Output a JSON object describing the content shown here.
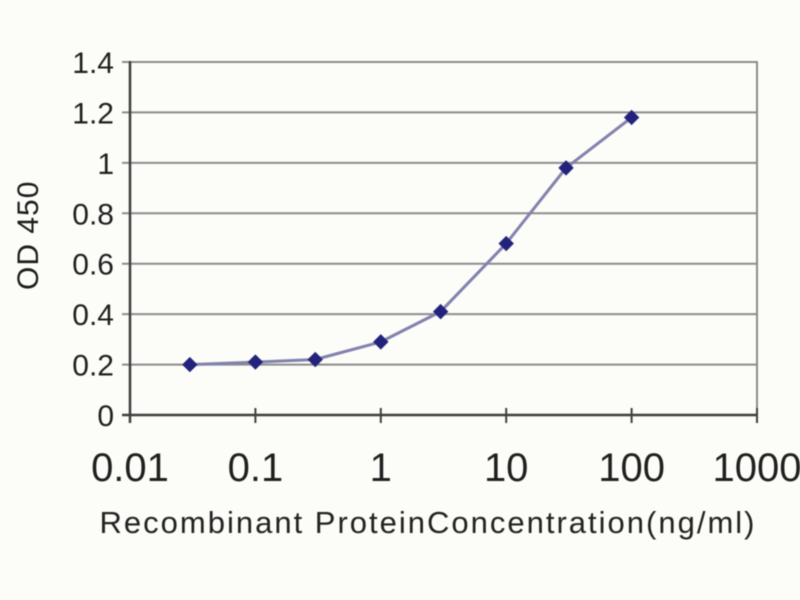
{
  "chart_data": {
    "type": "line",
    "title": "",
    "xlabel": "Recombinant ProteinConcentration(ng/ml)",
    "ylabel": "OD 450",
    "x_scale": "log",
    "xlim": [
      0.01,
      1000
    ],
    "ylim": [
      0,
      1.4
    ],
    "grid": "horizontal",
    "legend": "none",
    "x_ticks": {
      "values": [
        0.01,
        0.1,
        1,
        10,
        100,
        1000
      ],
      "labels": [
        "0.01",
        "0.1",
        "1",
        "10",
        "100",
        "1000"
      ]
    },
    "y_ticks": {
      "values": [
        0,
        0.2,
        0.4,
        0.6,
        0.8,
        1,
        1.2,
        1.4
      ],
      "labels": [
        "0",
        "0.2",
        "0.4",
        "0.6",
        "0.8",
        "1",
        "1.2",
        "1.4"
      ]
    },
    "series": [
      {
        "marker": "diamond",
        "x": [
          0.03,
          0.1,
          0.3,
          1,
          3,
          10,
          30,
          100
        ],
        "y": [
          0.2,
          0.21,
          0.22,
          0.29,
          0.41,
          0.68,
          0.98,
          1.18
        ]
      }
    ],
    "colors": {
      "marker": "#23237c",
      "line": "#8282ae",
      "grid": "#8c8c8c",
      "axis": "#3f3f3f",
      "text": "#1f1f1f",
      "background": "#fcfcf8"
    }
  }
}
